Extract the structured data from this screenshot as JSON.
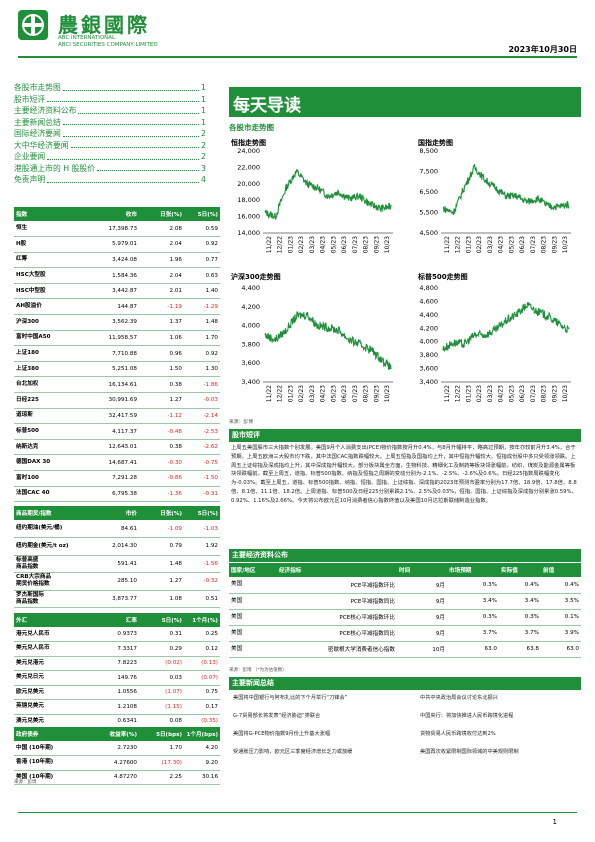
{
  "header": {
    "logo_cn": "農銀國際",
    "logo_en1": "ABC INTERNATIONAL",
    "logo_en2": "ABCI SECURITIES COMPANY LIMITED",
    "date": "2023年10月30日"
  },
  "toc": [
    {
      "label": "各股市走势图",
      "page": "1"
    },
    {
      "label": "股市短评",
      "page": "1"
    },
    {
      "label": "主要经济资料公布",
      "page": "1"
    },
    {
      "label": "主要新闻总结",
      "page": "1"
    },
    {
      "label": "国际经济要闻",
      "page": "2"
    },
    {
      "label": "大中华经济要闻",
      "page": "2"
    },
    {
      "label": "企业要闻",
      "page": "2"
    },
    {
      "label": "港股通上市的 H 股股价",
      "page": "3"
    },
    {
      "label": "免责声明",
      "page": "4"
    }
  ],
  "banner_title": "每天导读",
  "markets_title": "各股市走势图",
  "charts": [
    {
      "title": "恒指走势图",
      "y_ticks": [
        "24,000",
        "22,000",
        "20,000",
        "18,000",
        "16,000",
        "14,000"
      ],
      "ylim": [
        14000,
        24000
      ]
    },
    {
      "title": "国指走势图",
      "y_ticks": [
        "8,500",
        "7,500",
        "6,500",
        "5,500",
        "4,500"
      ],
      "ylim": [
        4500,
        8500
      ]
    },
    {
      "title": "沪深300走势图",
      "y_ticks": [
        "4,400",
        "4,200",
        "4,000",
        "3,800",
        "3,600",
        "3,400"
      ],
      "ylim": [
        3400,
        4400
      ]
    },
    {
      "title": "标普500走势图",
      "y_ticks": [
        "4,800",
        "4,600",
        "4,400",
        "4,200",
        "4,000",
        "3,800",
        "3,600",
        "3,400"
      ],
      "ylim": [
        3400,
        4800
      ]
    }
  ],
  "x_ticks": [
    "11/22",
    "12/22",
    "01/23",
    "02/23",
    "03/23",
    "04/23",
    "05/23",
    "06/23",
    "07/23",
    "08/23",
    "09/23",
    "10/23"
  ],
  "chart_source": "来源：彭博",
  "index_table": {
    "headers": [
      "指数",
      "收市",
      "日张(%)",
      "5日(%)"
    ],
    "rows": [
      [
        "恒生",
        "17,398.73",
        "2.08",
        "0.59"
      ],
      [
        "H股",
        "5,979.01",
        "2.04",
        "0.92"
      ],
      [
        "红筹",
        "3,424.08",
        "1.96",
        "0.77"
      ],
      [
        "HSC大型股",
        "1,584.36",
        "2.04",
        "0.63"
      ],
      [
        "HSC中型股",
        "3,442.87",
        "2.01",
        "1.40"
      ],
      [
        "AH股溢价",
        "144.87",
        "-1.19",
        "-1.29"
      ],
      [
        "沪深300",
        "3,562.39",
        "1.37",
        "1.48"
      ],
      [
        "富时中国A50",
        "11,958.57",
        "1.06",
        "1.70"
      ],
      [
        "上证180",
        "7,710.88",
        "0.96",
        "0.92"
      ],
      [
        "上证380",
        "5,251.08",
        "1.50",
        "1.30"
      ],
      [
        "台北加权",
        "16,134.61",
        "0.38",
        "-1.86"
      ],
      [
        "日经225",
        "30,991.69",
        "1.27",
        "-0.03"
      ],
      [
        "道琼斯",
        "32,417.59",
        "-1.12",
        "-2.14"
      ],
      [
        "标普500",
        "4,117.37",
        "-0.48",
        "-2.53"
      ],
      [
        "纳斯达克",
        "12,643.01",
        "0.38",
        "-2.62"
      ],
      [
        "德国DAX 30",
        "14,687.41",
        "-0.30",
        "-0.75"
      ],
      [
        "富时100",
        "7,291.28",
        "-0.86",
        "-1.50"
      ],
      [
        "法国CAC 40",
        "6,795.38",
        "-1.36",
        "-0.31"
      ]
    ]
  },
  "commodity_table": {
    "headers": [
      "商品期货/指数",
      "市价",
      "日张(%)",
      "5日(%)"
    ],
    "rows": [
      [
        "纽约期油(美元/桶)",
        "84.61",
        "-1.09",
        "-1.03"
      ],
      [
        "纽约期金(美元/t oz)",
        "2,014.30",
        "0.79",
        "1.92"
      ],
      [
        "标普高盛\n商品指数",
        "591.41",
        "1.48",
        "-1.56"
      ],
      [
        "CRB大宗商品\n期货价格指数",
        "285.10",
        "1.27",
        "-0.32"
      ],
      [
        "罗杰斯国际\n商品指数",
        "3,873.77",
        "1.08",
        "0.51"
      ]
    ]
  },
  "fx_table": {
    "headers": [
      "外汇",
      "汇率",
      "5日(%)",
      "1个月(%)"
    ],
    "rows": [
      [
        "港元兑人民币",
        "0.9373",
        "0.31",
        "0.25"
      ],
      [
        "美元兑人民币",
        "7.3317",
        "0.29",
        "0.12"
      ],
      [
        "美元兑港元",
        "7.8223",
        "(0.02)",
        "(0.13)"
      ],
      [
        "美元兑日元",
        "149.76",
        "0.03",
        "(0.07)"
      ],
      [
        "欧元兑美元",
        "1.0556",
        "(1.07)",
        "0.75"
      ],
      [
        "英镑兑美元",
        "1.2108",
        "(1.15)",
        "0.17"
      ],
      [
        "澳元兑美元",
        "0.6341",
        "0.08",
        "(0.35)"
      ]
    ]
  },
  "yield_table": {
    "headers": [
      "政府债券",
      "收益率(%)",
      "5日(bps)",
      "1个月(bps)"
    ],
    "rows": [
      [
        "中国 (10年期)",
        "2.7230",
        "1.70",
        "4.20"
      ],
      [
        "香港 (10年期)",
        "4.27600",
        "(17.30)",
        "9.20"
      ],
      [
        "美国 (10年期)",
        "4.87270",
        "2.25",
        "30.16"
      ]
    ]
  },
  "tables_source": "来源：彭博",
  "commentary_title": "股市短评",
  "commentary": "上周五美国股市三大指数个别发展。美国9月个人消费支出(PCE)物价指数按月升0.4%，与8月升幅持平，略高过预期，按年亦较前月升3.4%，合于预期。上周五欧洲三大股市均下跌，其中法国CAC指数跌幅较大。上周五恒指及国指均上升，其中恒指升幅较大。恒指成份股中多只受领涨领跌。上周五上证综指及深成指均上升，其中深成指升幅较大。部分板块属全方面，生物科技、精细化工及制药等板块领涨幅前，纺织、煤炭及能源金属等板块领跌幅前。截至上周五，道指、标普500指数、纳指及恒指之周期的变动分别为-2.1%、-2.5%、-2.6%及0.6%。日经225指数周跌幅变化为-0.03%。截至上周五，道指、标普500指数、纳指、恒指、国指、上证综指、深成指的2023年预测市盈率分别为17.7倍、18.9倍、17.8倍、8.8倍、8.1倍、11.1倍、18.2倍。上周道指、标普500及日经225分别累跌2.1%、2.5%及0.03%，恒指、国指、上证综指及深成指分别累涨0.59%、0.92%、1.16%及2.66%。今天将公布欧元区10月消费者信心指数终值以及美国10月达拉斯联储制造业指数。",
  "econ_title": "主要经济资料公布",
  "econ_table": {
    "headers": [
      "国家/地区",
      "经济指标",
      "时间",
      "市场预期",
      "实际值",
      "前值"
    ],
    "rows": [
      [
        "美国",
        "PCE平减指数环比",
        "9月",
        "0.3%",
        "0.4%",
        "0.4%"
      ],
      [
        "美国",
        "PCE平减指数同比",
        "9月",
        "3.4%",
        "3.4%",
        "3.5%"
      ],
      [
        "美国",
        "PCE核心平减指数环比",
        "9月",
        "0.3%",
        "0.3%",
        "0.1%"
      ],
      [
        "美国",
        "PCE核心平减指数同比",
        "9月",
        "3.7%",
        "3.7%",
        "3.9%"
      ],
      [
        "美国",
        "密歇根大学消费者信心指数",
        "10月",
        "63.0",
        "63.8",
        "63.0"
      ]
    ]
  },
  "econ_source": "来源：彭博 （*为为估值数）",
  "news_title": "主要新闻总结",
  "news_left": [
    "美国将中国银行与阿布扎比的下个月举行“刀锋会”",
    "G-7贸易部长将发表“经济胁迫”类联合",
    "美国将G-PCE物价指数9月份上升基大涨幅",
    "受通胀压力影响，欧元区三季度经济增长乏力或放缓"
  ],
  "news_right": [
    "中共中央政治局会议讨论东北振兴",
    "中国央行：将加快推进人民币跨境化进程",
    "货物贸易人民币跨境收付达到2%",
    "美国再次收紧限制国际领域的中美规则限制"
  ],
  "page_number": "1"
}
